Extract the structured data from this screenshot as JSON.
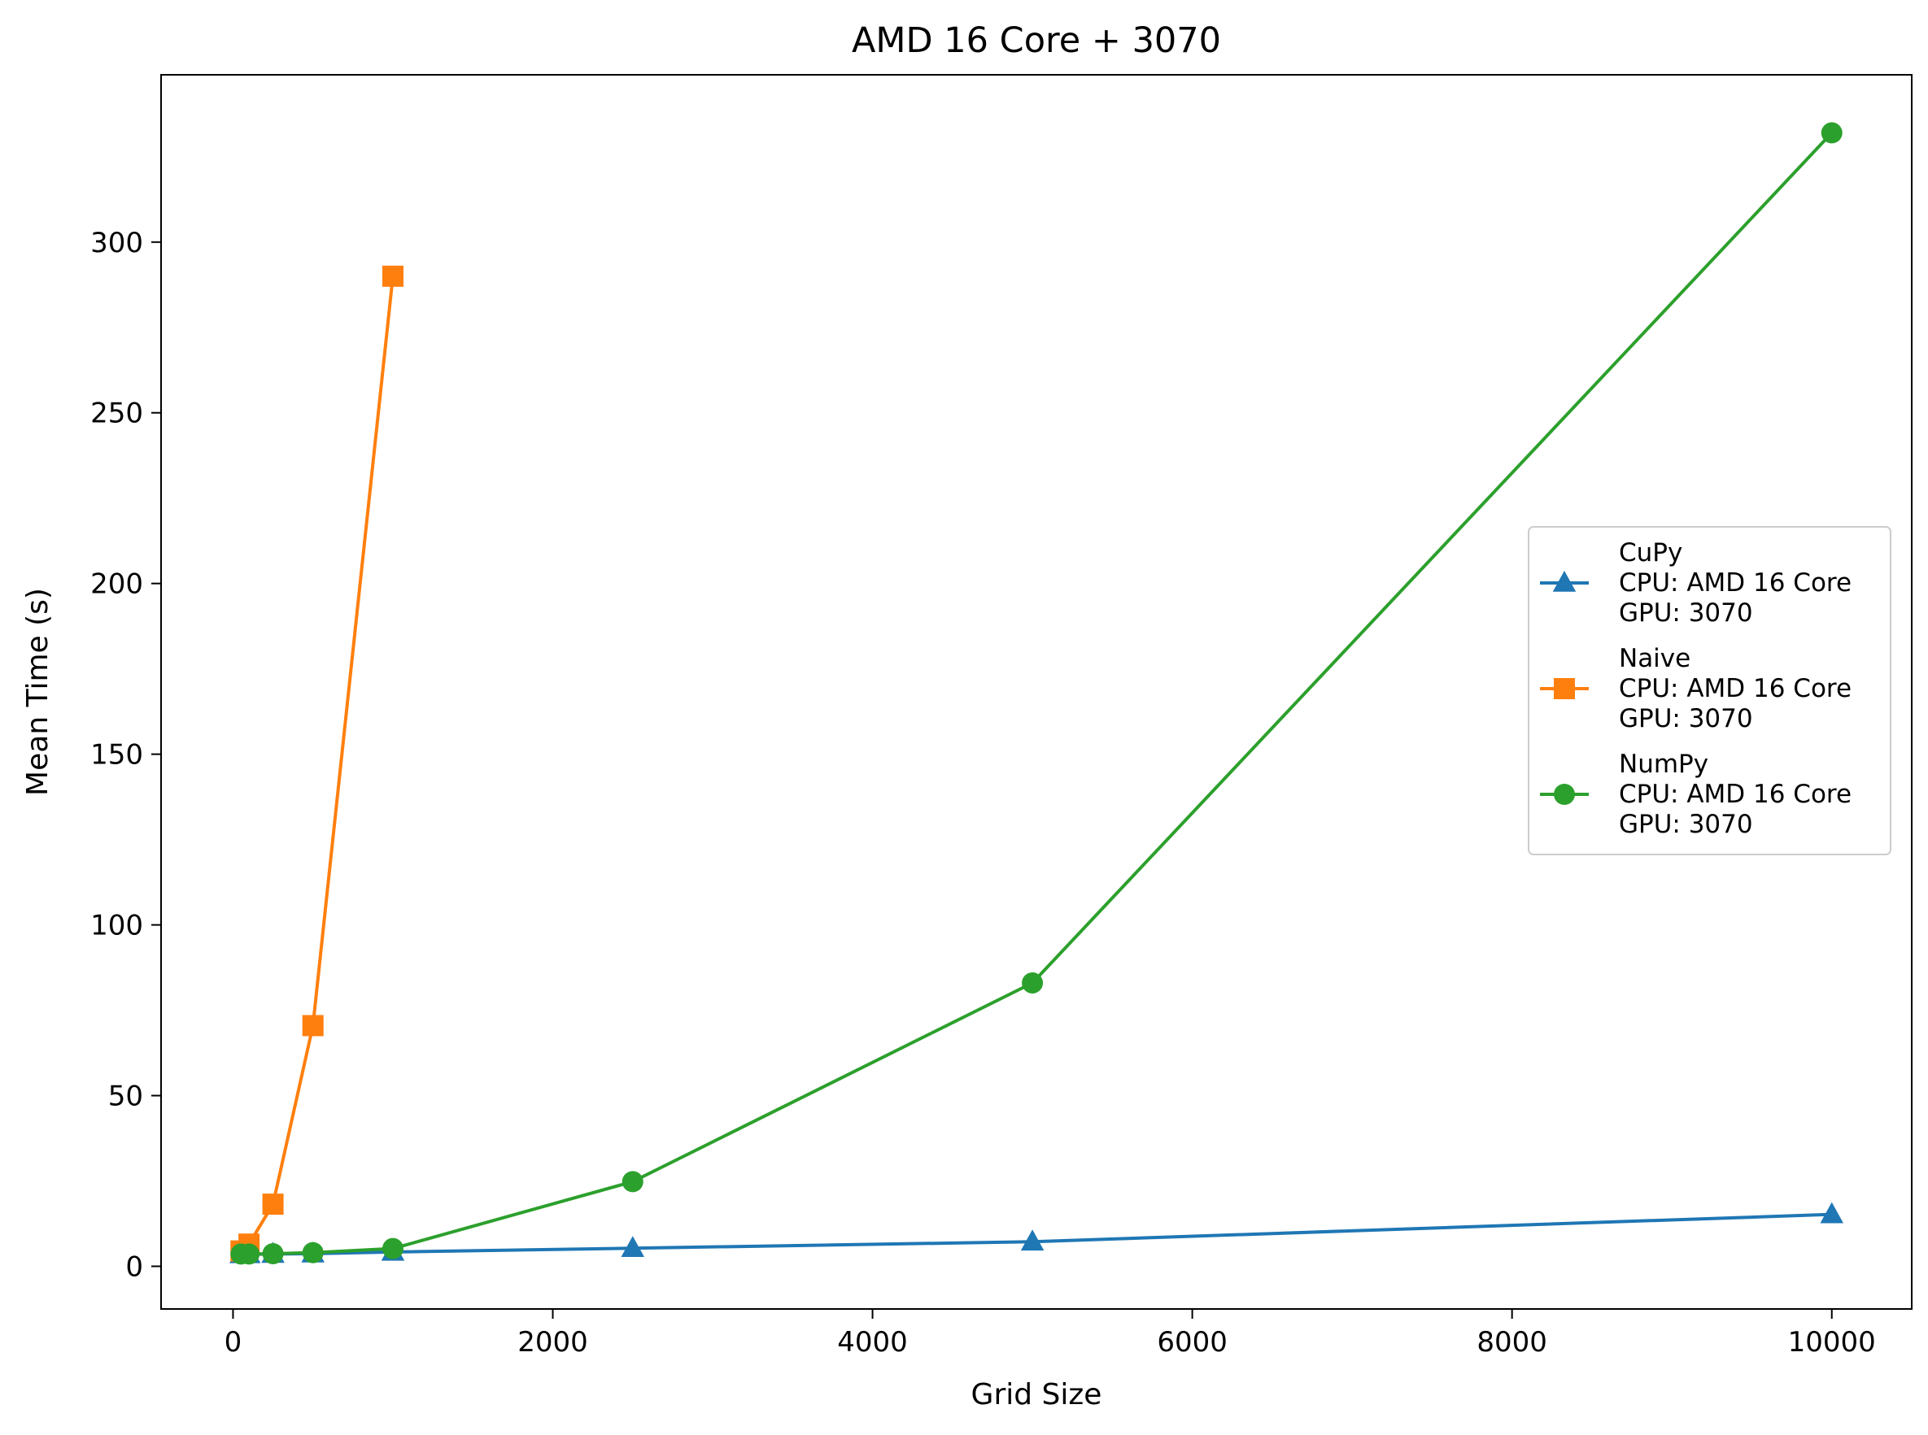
{
  "chart_data": {
    "type": "line",
    "title": "AMD 16 Core + 3070",
    "xlabel": "Grid Size",
    "ylabel": "Mean Time (s)",
    "xlim": [
      -450,
      10500
    ],
    "ylim": [
      -12.5,
      349
    ],
    "xticks": [
      0,
      2000,
      4000,
      6000,
      8000,
      10000
    ],
    "yticks": [
      0,
      50,
      100,
      150,
      200,
      250,
      300
    ],
    "grid": false,
    "legend_position": "center-right",
    "series": [
      {
        "name_lines": [
          "CuPy",
          "CPU: AMD 16 Core",
          "GPU: 3070"
        ],
        "color": "#1f77b4",
        "marker": "triangle",
        "x": [
          50,
          100,
          250,
          500,
          1000,
          2500,
          5000,
          10000
        ],
        "y": [
          3.5,
          3.5,
          3.6,
          3.7,
          4.2,
          5.3,
          7.2,
          15.2
        ]
      },
      {
        "name_lines": [
          "Naive",
          "CPU: AMD 16 Core",
          "GPU: 3070"
        ],
        "color": "#ff7f0e",
        "marker": "square",
        "x": [
          50,
          100,
          250,
          500,
          1000
        ],
        "y": [
          4.5,
          6.5,
          18.2,
          70.5,
          290
        ]
      },
      {
        "name_lines": [
          "NumPy",
          "CPU: AMD 16 Core",
          "GPU: 3070"
        ],
        "color": "#2ca02c",
        "marker": "circle",
        "x": [
          50,
          100,
          250,
          500,
          1000,
          2500,
          5000,
          10000
        ],
        "y": [
          3.6,
          3.6,
          3.7,
          4.0,
          5.2,
          24.8,
          83,
          332
        ]
      }
    ]
  }
}
